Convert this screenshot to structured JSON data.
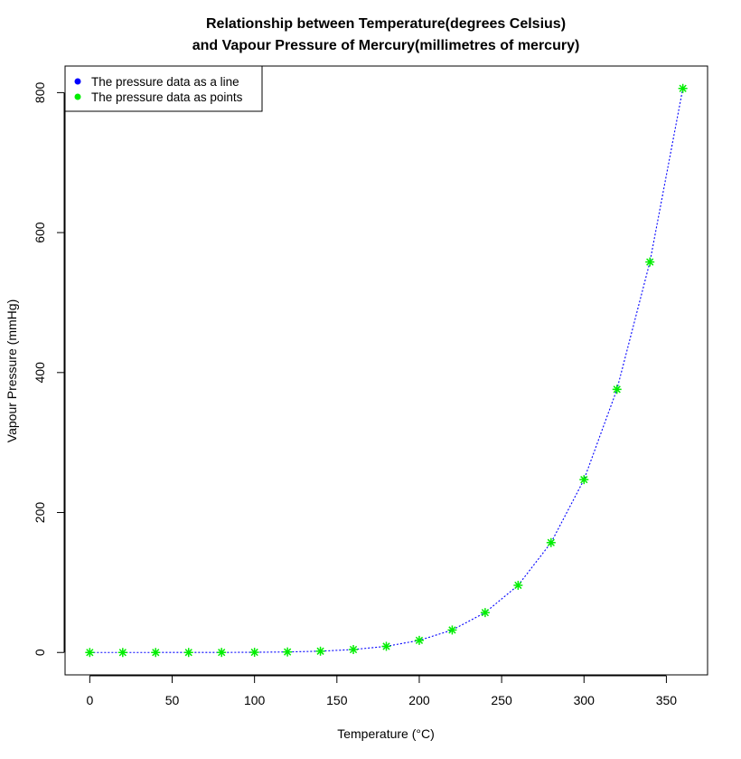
{
  "chart_data": {
    "type": "line",
    "title": [
      "Relationship between Temperature(degrees Celsius)",
      "and Vapour Pressure of Mercury(millimetres of mercury)"
    ],
    "xlabel": "Temperature (°C)",
    "ylabel": "Vapour Pressure (mmHg)",
    "xlim": [
      -15,
      375
    ],
    "ylim": [
      -32,
      838
    ],
    "xticks": [
      0,
      50,
      100,
      150,
      200,
      250,
      300,
      350
    ],
    "yticks": [
      0,
      200,
      400,
      600,
      800
    ],
    "grid": false,
    "legend_position": "top-left",
    "x": [
      0,
      20,
      40,
      60,
      80,
      100,
      120,
      140,
      160,
      180,
      200,
      220,
      240,
      260,
      280,
      300,
      320,
      340,
      360
    ],
    "series": [
      {
        "name": "The pressure data as a line",
        "style": "dotted-line",
        "color": "#0000ff",
        "values": [
          0.0002,
          0.0012,
          0.006,
          0.03,
          0.09,
          0.27,
          0.75,
          1.85,
          4.2,
          8.8,
          17.3,
          32.1,
          57.0,
          96.0,
          157.0,
          247.0,
          376.0,
          558.0,
          806.0
        ]
      },
      {
        "name": "The pressure data as points",
        "style": "asterisk-points",
        "color": "#00ee00",
        "values": [
          0.0002,
          0.0012,
          0.006,
          0.03,
          0.09,
          0.27,
          0.75,
          1.85,
          4.2,
          8.8,
          17.3,
          32.1,
          57.0,
          96.0,
          157.0,
          247.0,
          376.0,
          558.0,
          806.0
        ]
      }
    ]
  }
}
